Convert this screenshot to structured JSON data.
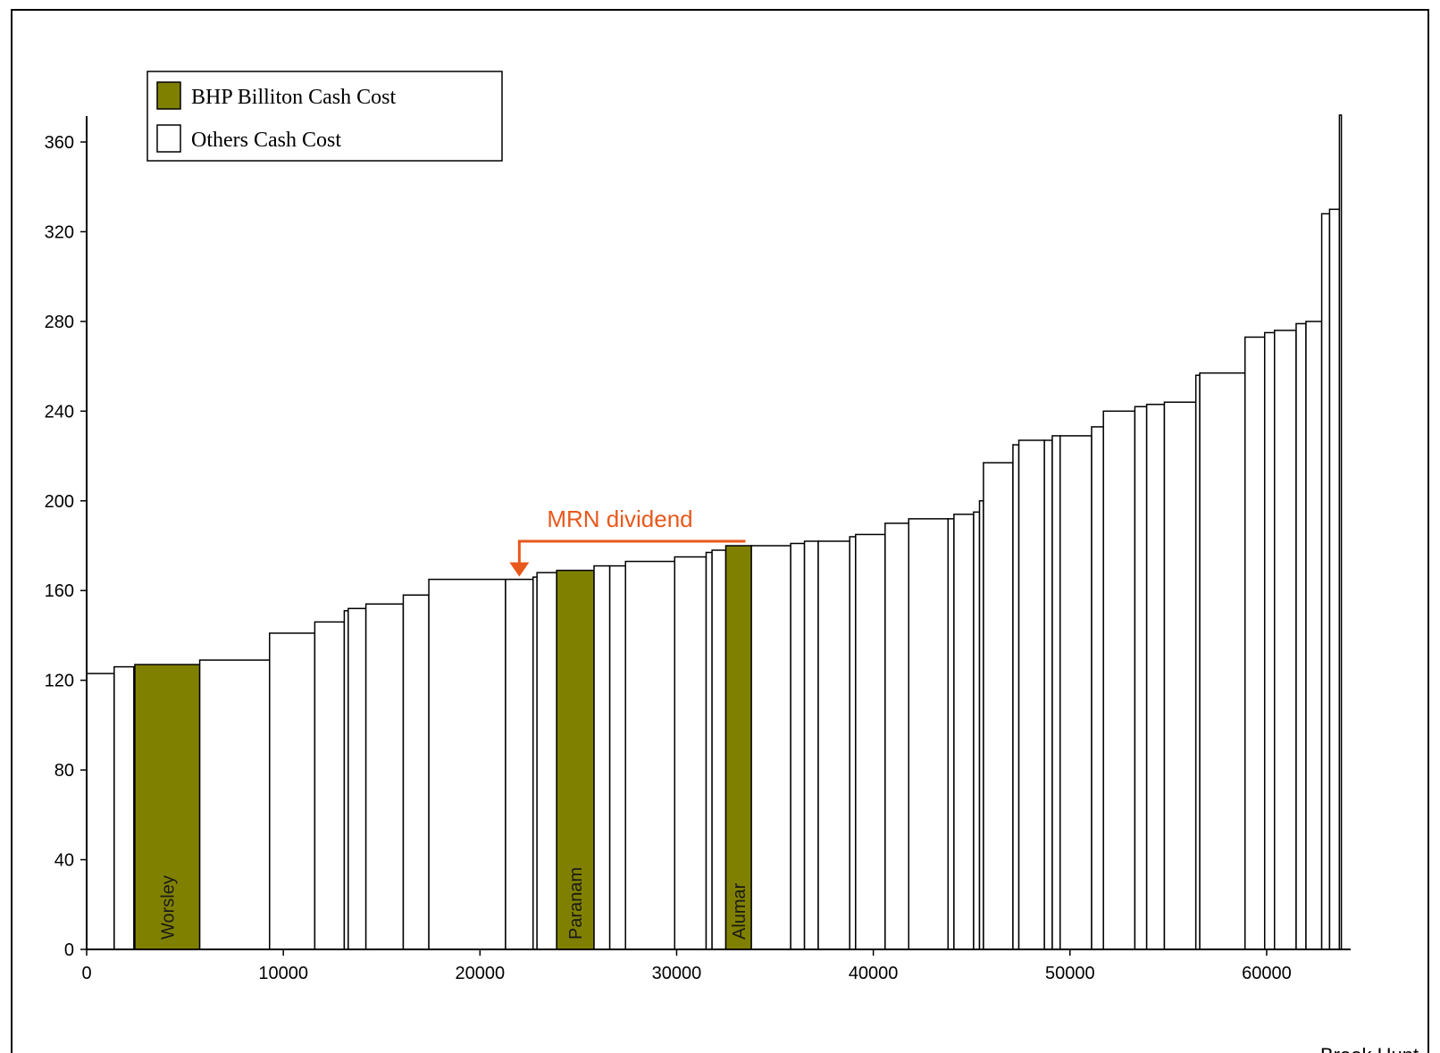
{
  "chart_data": {
    "type": "bar",
    "subtype": "cost-curve",
    "title": "",
    "xlabel": "",
    "ylabel": "",
    "xlim": [
      0,
      64000
    ],
    "ylim": [
      0,
      360
    ],
    "x_ticks": [
      0,
      10000,
      20000,
      30000,
      40000,
      50000,
      60000
    ],
    "y_ticks": [
      0,
      40,
      80,
      120,
      160,
      200,
      240,
      280,
      320,
      360
    ],
    "grid": false,
    "legend_position": "top-left",
    "colors": {
      "bhp": "#808000",
      "others": "#ffffff",
      "annotation": "#e8581c",
      "outline": "#000000"
    },
    "legend": [
      {
        "key": "bhp",
        "label": "BHP Billiton Cash Cost"
      },
      {
        "key": "others",
        "label": "Others Cash Cost"
      }
    ],
    "bars": [
      {
        "x0": 0,
        "x1": 1400,
        "y": 123,
        "series": "others"
      },
      {
        "x0": 1400,
        "x1": 2400,
        "y": 126,
        "series": "others"
      },
      {
        "x0": 2450,
        "x1": 5750,
        "y": 127,
        "series": "bhp",
        "label": "Worsley"
      },
      {
        "x0": 5750,
        "x1": 9300,
        "y": 129,
        "series": "others"
      },
      {
        "x0": 9300,
        "x1": 11600,
        "y": 141,
        "series": "others"
      },
      {
        "x0": 11600,
        "x1": 13100,
        "y": 146,
        "series": "others"
      },
      {
        "x0": 13100,
        "x1": 13300,
        "y": 151,
        "series": "others"
      },
      {
        "x0": 13300,
        "x1": 14200,
        "y": 152,
        "series": "others"
      },
      {
        "x0": 14200,
        "x1": 16100,
        "y": 154,
        "series": "others"
      },
      {
        "x0": 16100,
        "x1": 17400,
        "y": 158,
        "series": "others"
      },
      {
        "x0": 17400,
        "x1": 21300,
        "y": 165,
        "series": "others"
      },
      {
        "x0": 21300,
        "x1": 22700,
        "y": 165,
        "series": "others"
      },
      {
        "x0": 22700,
        "x1": 22900,
        "y": 166,
        "series": "others"
      },
      {
        "x0": 22900,
        "x1": 23900,
        "y": 168,
        "series": "others"
      },
      {
        "x0": 23900,
        "x1": 25800,
        "y": 169,
        "series": "bhp",
        "label": "Paranam"
      },
      {
        "x0": 25800,
        "x1": 26600,
        "y": 171,
        "series": "others"
      },
      {
        "x0": 26600,
        "x1": 27400,
        "y": 171,
        "series": "others"
      },
      {
        "x0": 27400,
        "x1": 29900,
        "y": 173,
        "series": "others"
      },
      {
        "x0": 29900,
        "x1": 31500,
        "y": 175,
        "series": "others"
      },
      {
        "x0": 31500,
        "x1": 31800,
        "y": 177,
        "series": "others"
      },
      {
        "x0": 31800,
        "x1": 32500,
        "y": 178,
        "series": "others"
      },
      {
        "x0": 32500,
        "x1": 33800,
        "y": 180,
        "series": "bhp",
        "label": "Alumar"
      },
      {
        "x0": 33800,
        "x1": 35800,
        "y": 180,
        "series": "others"
      },
      {
        "x0": 35800,
        "x1": 36500,
        "y": 181,
        "series": "others"
      },
      {
        "x0": 36500,
        "x1": 37200,
        "y": 182,
        "series": "others"
      },
      {
        "x0": 37200,
        "x1": 38800,
        "y": 182,
        "series": "others"
      },
      {
        "x0": 38800,
        "x1": 39100,
        "y": 184,
        "series": "others"
      },
      {
        "x0": 39100,
        "x1": 40600,
        "y": 185,
        "series": "others"
      },
      {
        "x0": 40600,
        "x1": 41800,
        "y": 190,
        "series": "others"
      },
      {
        "x0": 41800,
        "x1": 43800,
        "y": 192,
        "series": "others"
      },
      {
        "x0": 43800,
        "x1": 44100,
        "y": 192,
        "series": "others"
      },
      {
        "x0": 44100,
        "x1": 45100,
        "y": 194,
        "series": "others"
      },
      {
        "x0": 45100,
        "x1": 45400,
        "y": 195,
        "series": "others"
      },
      {
        "x0": 45400,
        "x1": 45600,
        "y": 200,
        "series": "others"
      },
      {
        "x0": 45600,
        "x1": 47100,
        "y": 217,
        "series": "others"
      },
      {
        "x0": 47100,
        "x1": 47400,
        "y": 225,
        "series": "others"
      },
      {
        "x0": 47400,
        "x1": 48700,
        "y": 227,
        "series": "others"
      },
      {
        "x0": 48700,
        "x1": 49100,
        "y": 227,
        "series": "others"
      },
      {
        "x0": 49100,
        "x1": 49500,
        "y": 229,
        "series": "others"
      },
      {
        "x0": 49500,
        "x1": 51100,
        "y": 229,
        "series": "others"
      },
      {
        "x0": 51100,
        "x1": 51700,
        "y": 233,
        "series": "others"
      },
      {
        "x0": 51700,
        "x1": 53300,
        "y": 240,
        "series": "others"
      },
      {
        "x0": 53300,
        "x1": 53900,
        "y": 242,
        "series": "others"
      },
      {
        "x0": 53900,
        "x1": 54800,
        "y": 243,
        "series": "others"
      },
      {
        "x0": 54800,
        "x1": 56400,
        "y": 244,
        "series": "others"
      },
      {
        "x0": 56400,
        "x1": 56600,
        "y": 256,
        "series": "others"
      },
      {
        "x0": 56600,
        "x1": 58900,
        "y": 257,
        "series": "others"
      },
      {
        "x0": 58900,
        "x1": 59900,
        "y": 273,
        "series": "others"
      },
      {
        "x0": 59900,
        "x1": 60400,
        "y": 275,
        "series": "others"
      },
      {
        "x0": 60400,
        "x1": 61500,
        "y": 276,
        "series": "others"
      },
      {
        "x0": 61500,
        "x1": 62000,
        "y": 279,
        "series": "others"
      },
      {
        "x0": 62000,
        "x1": 62800,
        "y": 280,
        "series": "others"
      },
      {
        "x0": 62800,
        "x1": 63200,
        "y": 328,
        "series": "others"
      },
      {
        "x0": 63200,
        "x1": 63700,
        "y": 330,
        "series": "others"
      },
      {
        "x0": 63700,
        "x1": 63800,
        "y": 372,
        "series": "others"
      }
    ],
    "annotations": [
      {
        "text": "MRN dividend",
        "from_x": 33500,
        "from_y": 180,
        "to_x": 22000,
        "to_y": 165
      }
    ],
    "credit": "Brook Hunt"
  }
}
